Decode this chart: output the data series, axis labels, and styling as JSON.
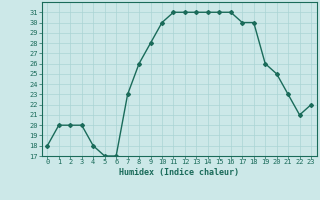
{
  "xlabel": "Humidex (Indice chaleur)",
  "x": [
    0,
    1,
    2,
    3,
    4,
    5,
    6,
    7,
    8,
    9,
    10,
    11,
    12,
    13,
    14,
    15,
    16,
    17,
    18,
    19,
    20,
    21,
    22,
    23
  ],
  "y": [
    18,
    20,
    20,
    20,
    18,
    17,
    17,
    23,
    26,
    28,
    30,
    31,
    31,
    31,
    31,
    31,
    31,
    30,
    30,
    26,
    25,
    23,
    21,
    22
  ],
  "line_color": "#1a6b5a",
  "bg_color": "#cce8e8",
  "grid_color": "#aad4d4",
  "ylim": [
    17,
    32
  ],
  "yticks": [
    17,
    18,
    19,
    20,
    21,
    22,
    23,
    24,
    25,
    26,
    27,
    28,
    29,
    30,
    31
  ],
  "marker": "D",
  "marker_size": 2,
  "linewidth": 1.0,
  "tick_fontsize": 5.0,
  "xlabel_fontsize": 6.0
}
